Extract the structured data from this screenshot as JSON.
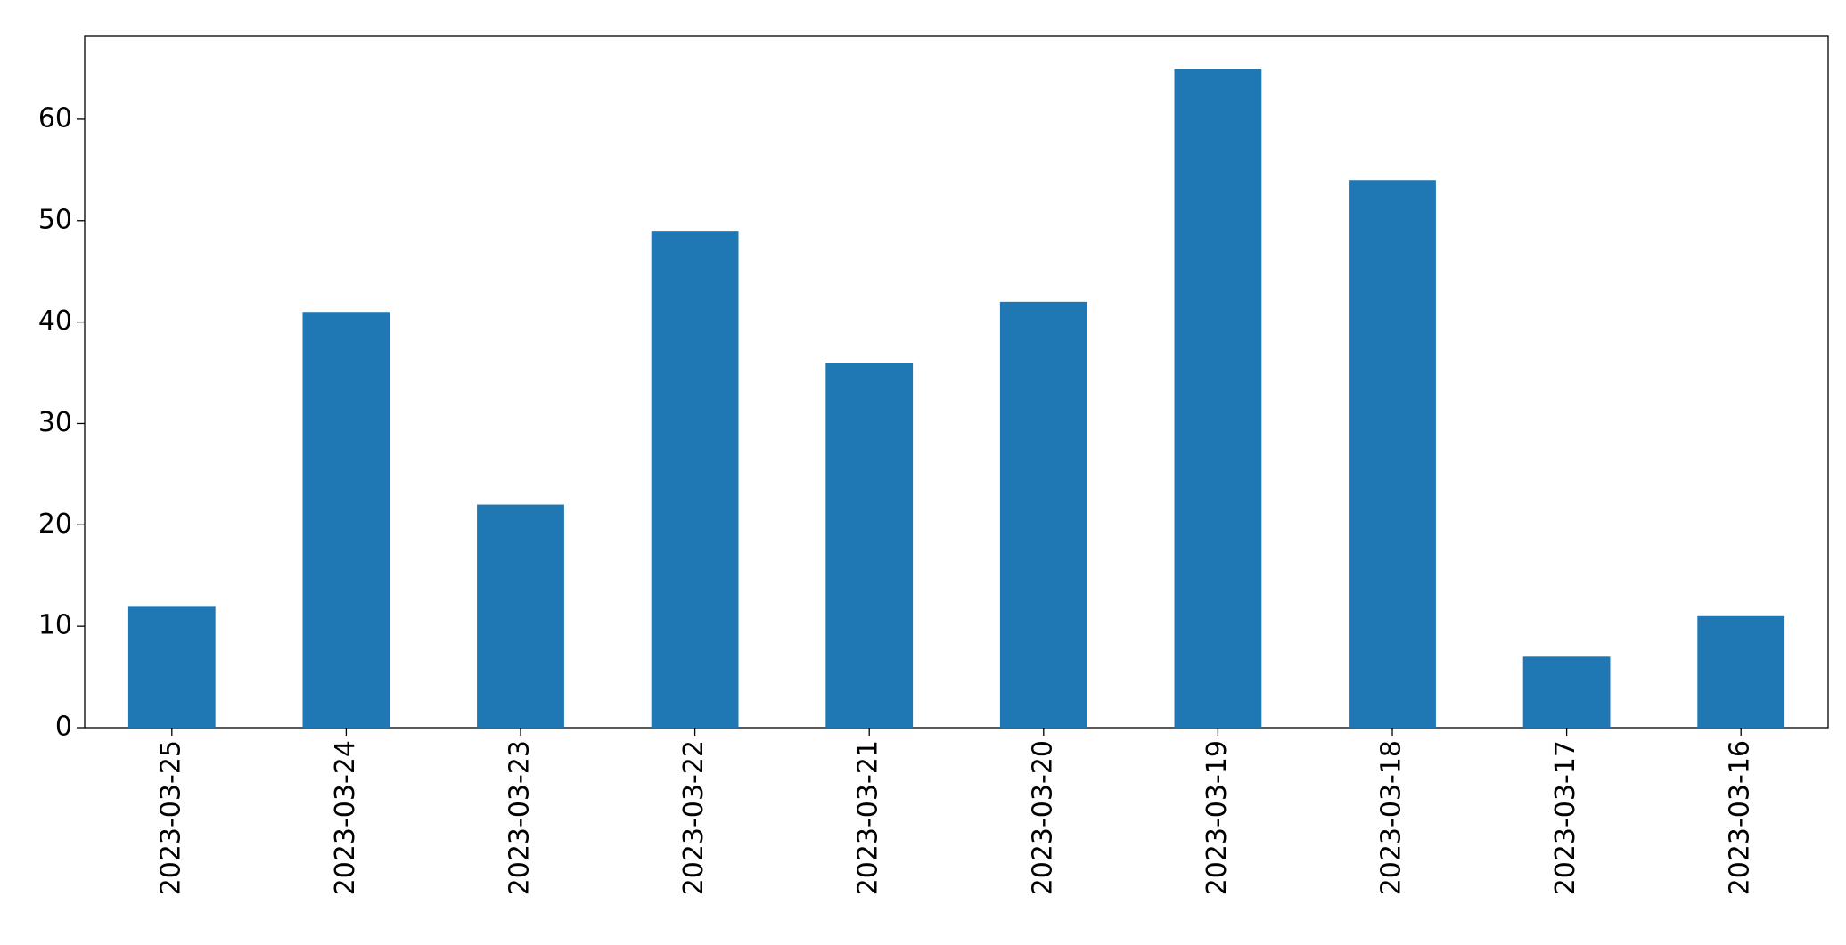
{
  "chart_data": {
    "type": "bar",
    "categories": [
      "2023-03-25",
      "2023-03-24",
      "2023-03-23",
      "2023-03-22",
      "2023-03-21",
      "2023-03-20",
      "2023-03-19",
      "2023-03-18",
      "2023-03-17",
      "2023-03-16"
    ],
    "values": [
      12,
      41,
      22,
      49,
      36,
      42,
      65,
      54,
      7,
      11
    ],
    "color": "#1f77b4",
    "ylim": [
      0,
      68.25
    ],
    "yticks": [
      0,
      10,
      20,
      30,
      40,
      50,
      60
    ],
    "grid": false
  }
}
